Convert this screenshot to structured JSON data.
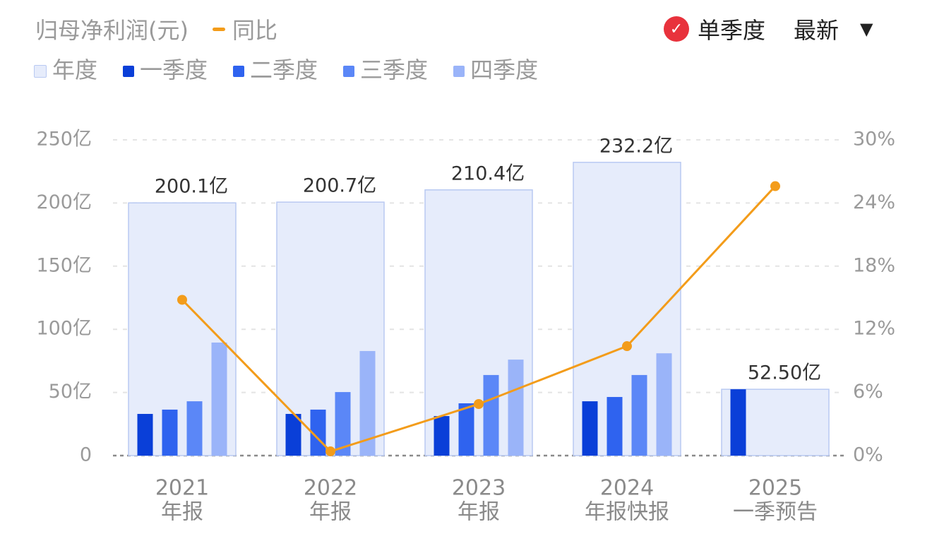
{
  "chart_data": {
    "type": "bar-line",
    "title": "归母净利润(元)",
    "controls": {
      "single_quarter": "单季度",
      "sort": "最新"
    },
    "categories": [
      [
        "2021",
        "年报"
      ],
      [
        "2022",
        "年报"
      ],
      [
        "2023",
        "年报"
      ],
      [
        "2024",
        "年报快报"
      ],
      [
        "2025",
        "一季预告"
      ]
    ],
    "annual": {
      "name": "年度",
      "color": "#e6ecfb",
      "stroke": "#b9c9f2",
      "values": [
        200.1,
        200.7,
        210.4,
        232.2,
        52.5
      ],
      "value_labels": [
        "200.1亿",
        "200.7亿",
        "210.4亿",
        "232.2亿",
        "52.50亿"
      ]
    },
    "series": [
      {
        "name": "一季度",
        "color": "#0a3fd8",
        "values": [
          33,
          33,
          31.3,
          43,
          52.5
        ]
      },
      {
        "name": "二季度",
        "color": "#2f63ef",
        "values": [
          36.4,
          36.4,
          41.4,
          46.4,
          null
        ]
      },
      {
        "name": "三季度",
        "color": "#5b87f7",
        "values": [
          43,
          50.3,
          63.8,
          63.8,
          null
        ]
      },
      {
        "name": "四季度",
        "color": "#9ab4f9",
        "values": [
          89.5,
          82.8,
          76,
          81,
          null
        ]
      }
    ],
    "line": {
      "name": "同比",
      "color": "#f39c1a",
      "axis": "y2",
      "values": [
        14.8,
        0.4,
        4.9,
        10.4,
        25.6
      ]
    },
    "ylim": [
      0,
      250
    ],
    "yticks": [
      {
        "value": 0,
        "label": "0"
      },
      {
        "value": 50,
        "label": "50亿"
      },
      {
        "value": 100,
        "label": "100亿"
      },
      {
        "value": 150,
        "label": "150亿"
      },
      {
        "value": 200,
        "label": "200亿"
      },
      {
        "value": 250,
        "label": "250亿"
      }
    ],
    "y2lim": [
      0,
      30
    ],
    "y2ticks": [
      {
        "value": 0,
        "label": "0%"
      },
      {
        "value": 6,
        "label": "6%"
      },
      {
        "value": 12,
        "label": "12%"
      },
      {
        "value": 18,
        "label": "18%"
      },
      {
        "value": 24,
        "label": "24%"
      },
      {
        "value": 30,
        "label": "30%"
      }
    ],
    "grid": true
  }
}
